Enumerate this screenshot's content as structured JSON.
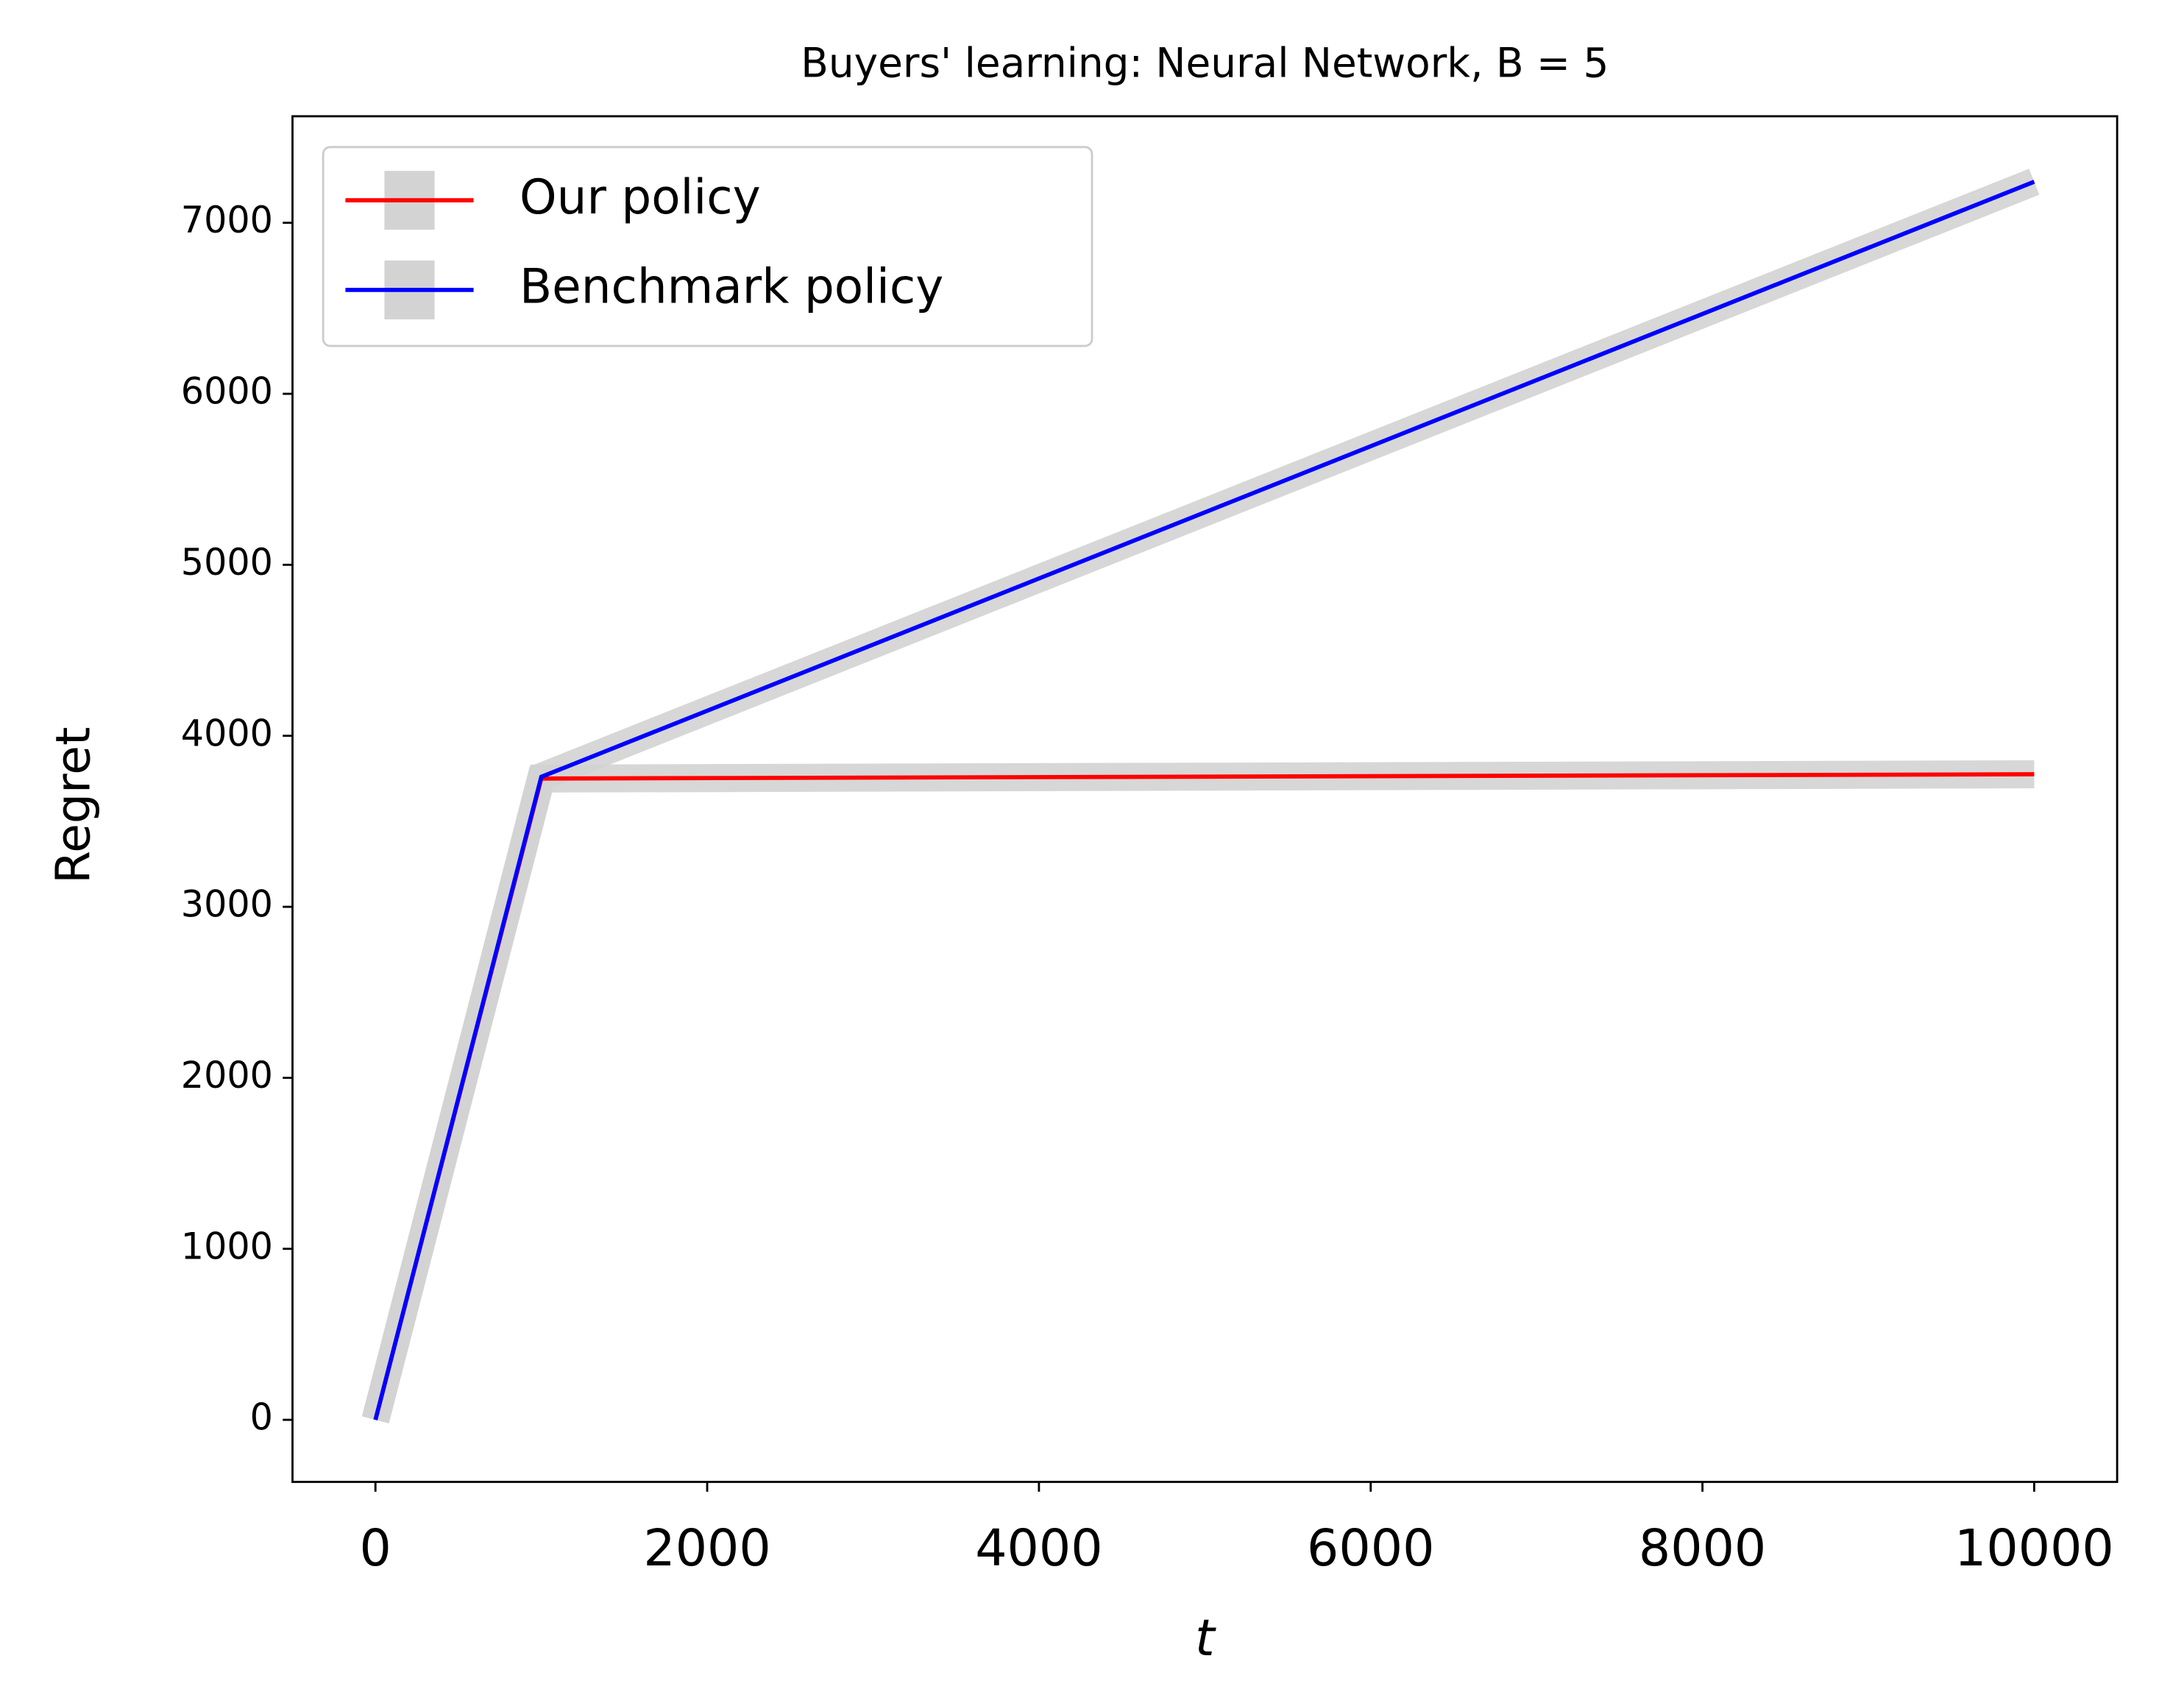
{
  "chart_data": {
    "type": "line",
    "title": "Buyers' learning: Neural Network, B = 5",
    "x_label": "t",
    "y_label": "Regret",
    "x": [
      0,
      1000,
      10000
    ],
    "series": [
      {
        "name": "Our policy",
        "color": "#ff0000",
        "values": [
          0,
          3750,
          3775
        ]
      },
      {
        "name": "Benchmark policy",
        "color": "#0000ff",
        "values": [
          0,
          3760,
          7240
        ]
      }
    ],
    "band_color": "#d3d3d3",
    "xlim": [
      -500,
      10500
    ],
    "ylim": [
      -363,
      7623
    ],
    "xticks": [
      0,
      2000,
      4000,
      6000,
      8000,
      10000
    ],
    "yticks": [
      0,
      1000,
      2000,
      3000,
      4000,
      5000,
      6000,
      7000
    ],
    "legend": "upper left",
    "grid": false
  }
}
